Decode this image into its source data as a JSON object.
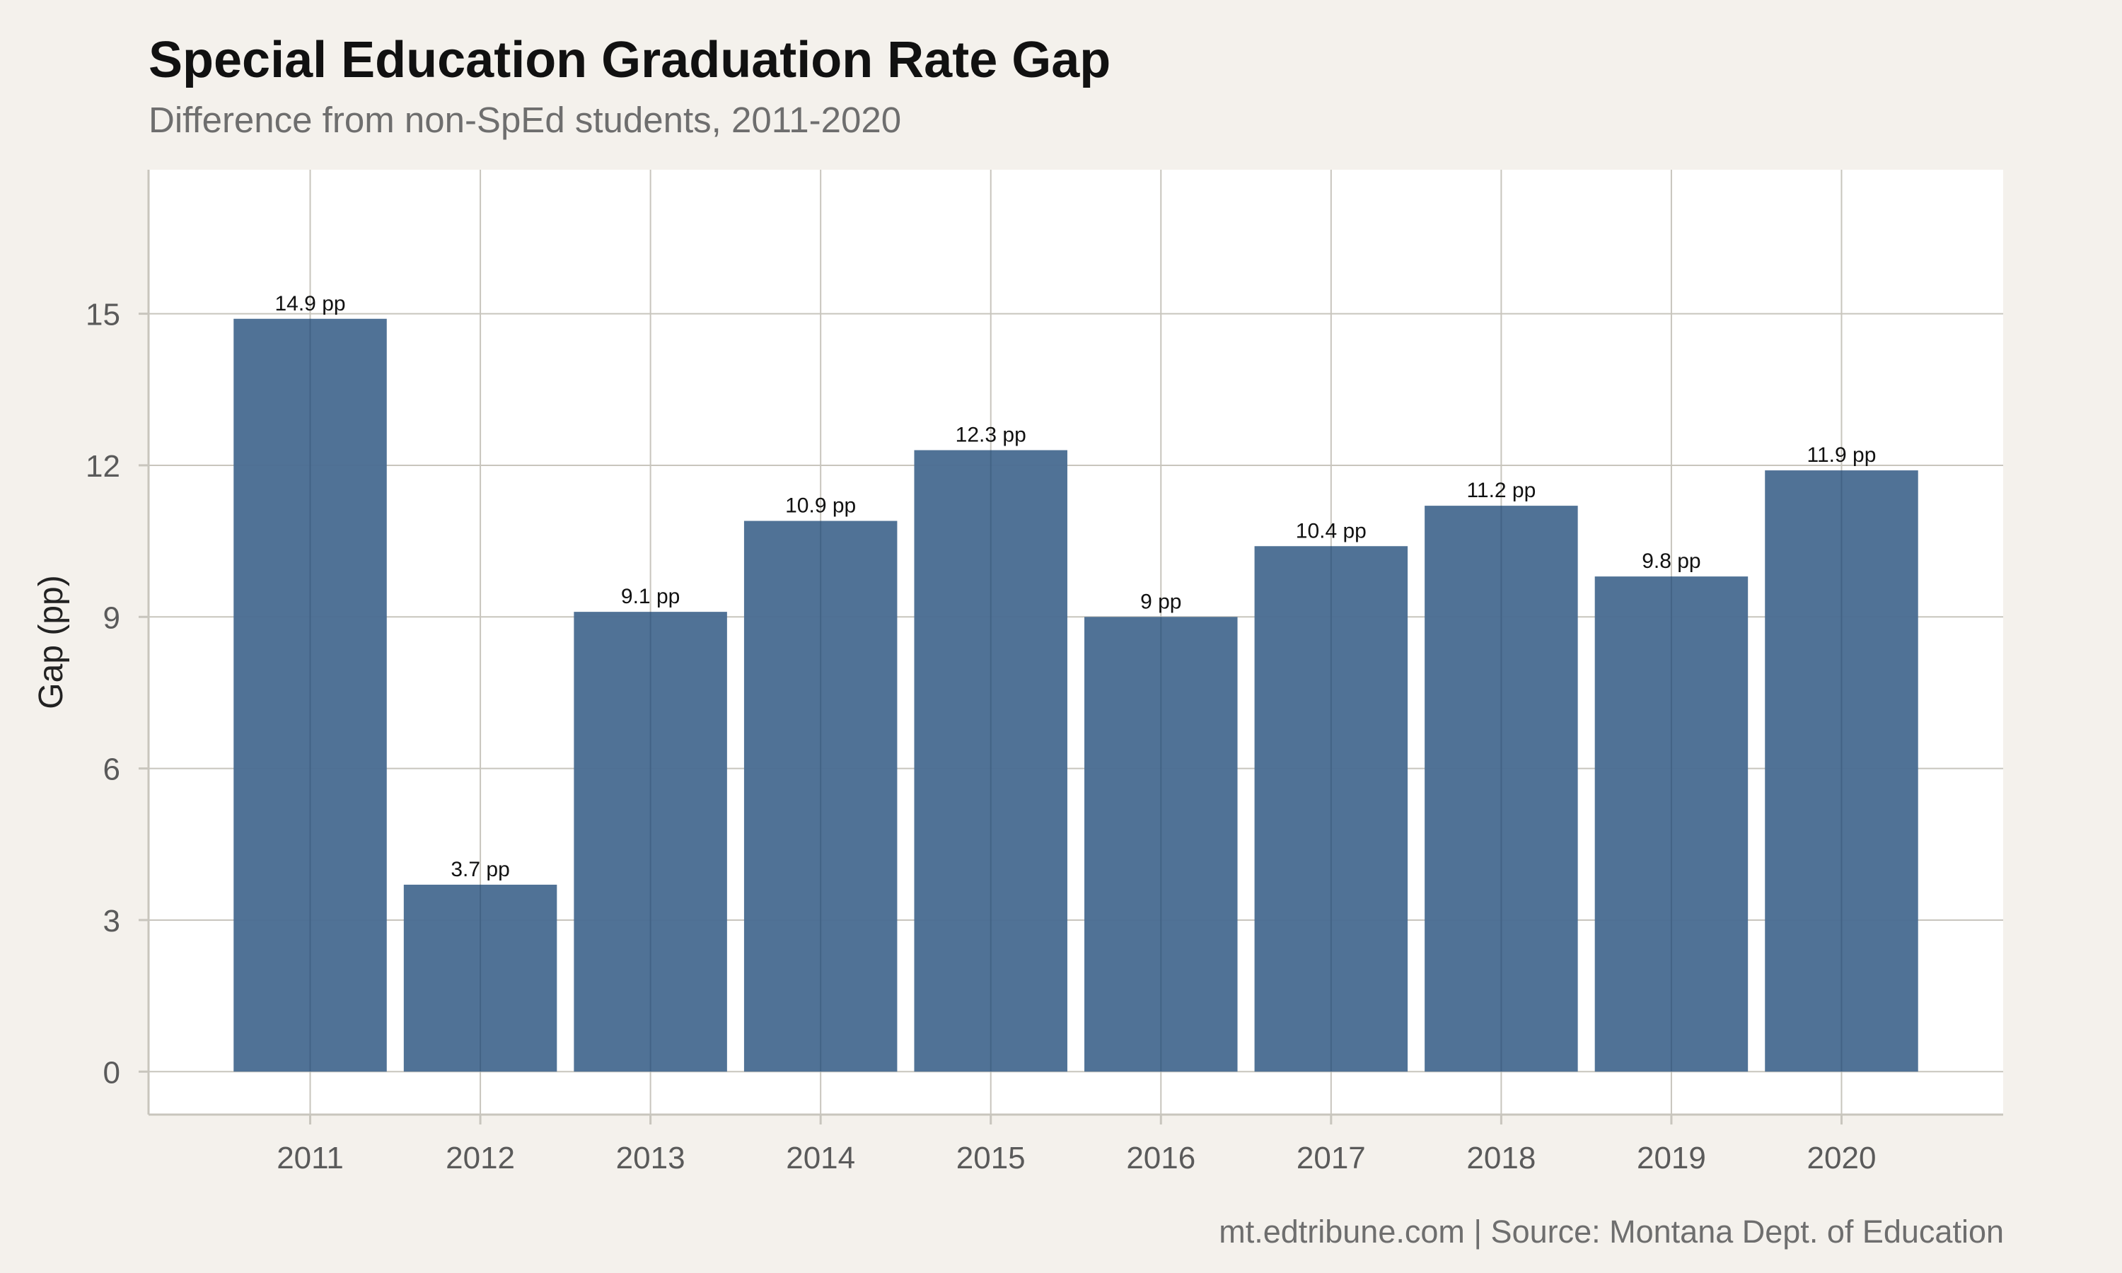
{
  "chart_data": {
    "type": "bar",
    "title": "Special Education Graduation Rate Gap",
    "subtitle": "Difference from non-SpEd students, 2011-2020",
    "caption": "mt.edtribune.com | Source: Montana Dept. of Education",
    "xlabel": "",
    "ylabel": "Gap (pp)",
    "categories": [
      "2011",
      "2012",
      "2013",
      "2014",
      "2015",
      "2016",
      "2017",
      "2018",
      "2019",
      "2020"
    ],
    "values": [
      14.9,
      3.7,
      9.1,
      10.9,
      12.3,
      9.0,
      10.4,
      11.2,
      9.8,
      11.9
    ],
    "data_labels": [
      "14.9 pp",
      "3.7 pp",
      "9.1 pp",
      "10.9 pp",
      "12.3 pp",
      "9 pp",
      "10.4 pp",
      "11.2 pp",
      "9.8 pp",
      "11.9 pp"
    ],
    "yticks": [
      0,
      3,
      6,
      9,
      12,
      15
    ],
    "ylim": [
      -0.85,
      17.85
    ],
    "grid": true,
    "legend": "none",
    "colors": {
      "bar": "#4a6d93",
      "grid": "#c8c5bd",
      "panel": "#ffffff",
      "background": "#f4f1ec"
    }
  }
}
